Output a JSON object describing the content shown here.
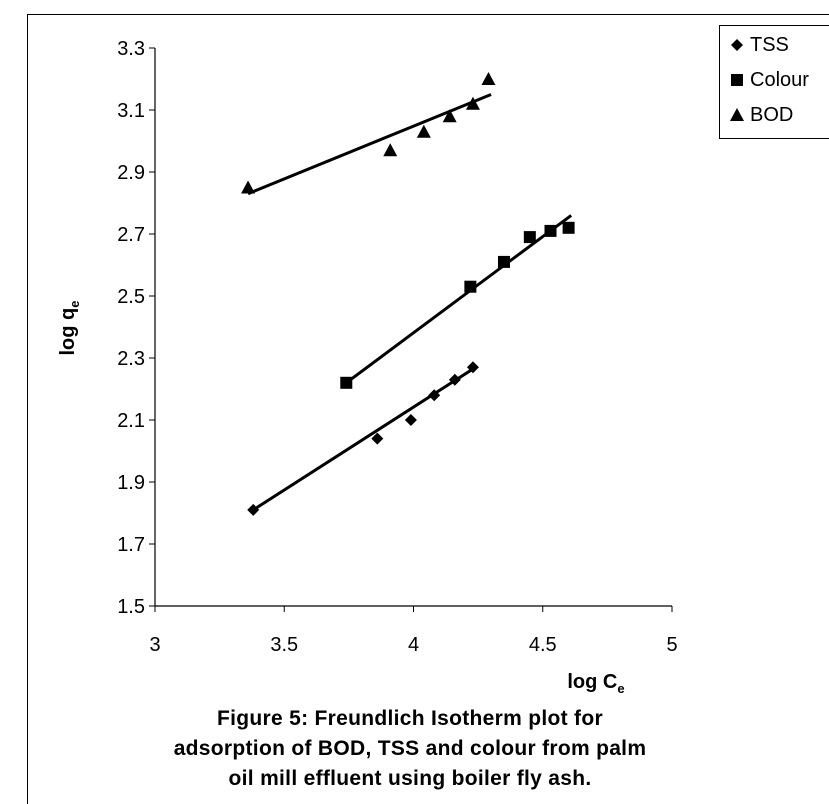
{
  "chart_data": {
    "type": "scatter",
    "title": "",
    "xlabel": "log C",
    "xlabel_sub": "e",
    "ylabel": "log q",
    "ylabel_sub": "e",
    "xlim": [
      3,
      5
    ],
    "ylim": [
      1.5,
      3.3
    ],
    "x_ticks": [
      3,
      3.5,
      4,
      4.5,
      5
    ],
    "x_tick_labels": [
      "3",
      "3.5",
      "4",
      "4.5",
      "5"
    ],
    "y_ticks": [
      1.5,
      1.7,
      1.9,
      2.1,
      2.3,
      2.5,
      2.7,
      2.9,
      3.1,
      3.3
    ],
    "y_tick_labels": [
      "1.5",
      "1.7",
      "1.9",
      "2.1",
      "2.3",
      "2.5",
      "2.7",
      "2.9",
      "3.1",
      "3.3"
    ],
    "grid": false,
    "legend_position": "top-right",
    "series": [
      {
        "name": "TSS",
        "marker": "diamond",
        "color": "#000000",
        "points": [
          [
            3.38,
            1.81
          ],
          [
            3.86,
            2.04
          ],
          [
            3.99,
            2.1
          ],
          [
            4.08,
            2.18
          ],
          [
            4.16,
            2.23
          ],
          [
            4.23,
            2.27
          ]
        ],
        "trendline": [
          [
            3.38,
            1.81
          ],
          [
            4.24,
            2.27
          ]
        ]
      },
      {
        "name": "Colour",
        "marker": "square",
        "color": "#000000",
        "points": [
          [
            3.74,
            2.22
          ],
          [
            4.22,
            2.53
          ],
          [
            4.35,
            2.61
          ],
          [
            4.45,
            2.69
          ],
          [
            4.53,
            2.71
          ],
          [
            4.6,
            2.72
          ]
        ],
        "trendline": [
          [
            3.74,
            2.22
          ],
          [
            4.61,
            2.76
          ]
        ]
      },
      {
        "name": "BOD",
        "marker": "triangle",
        "color": "#000000",
        "points": [
          [
            3.36,
            2.85
          ],
          [
            3.91,
            2.97
          ],
          [
            4.04,
            3.03
          ],
          [
            4.14,
            3.08
          ],
          [
            4.23,
            3.12
          ],
          [
            4.29,
            3.2
          ]
        ],
        "trendline": [
          [
            3.36,
            2.83
          ],
          [
            4.3,
            3.15
          ]
        ]
      }
    ]
  },
  "legend": {
    "items": [
      {
        "label": "TSS",
        "symbol": "diamond"
      },
      {
        "label": "Colour",
        "symbol": "square"
      },
      {
        "label": "BOD",
        "symbol": "triangle"
      }
    ]
  },
  "caption": {
    "line1": "Figure 5: Freundlich Isotherm plot for",
    "line2": "adsorption of BOD, TSS and colour from palm",
    "line3": "oil mill effluent using boiler fly ash."
  }
}
